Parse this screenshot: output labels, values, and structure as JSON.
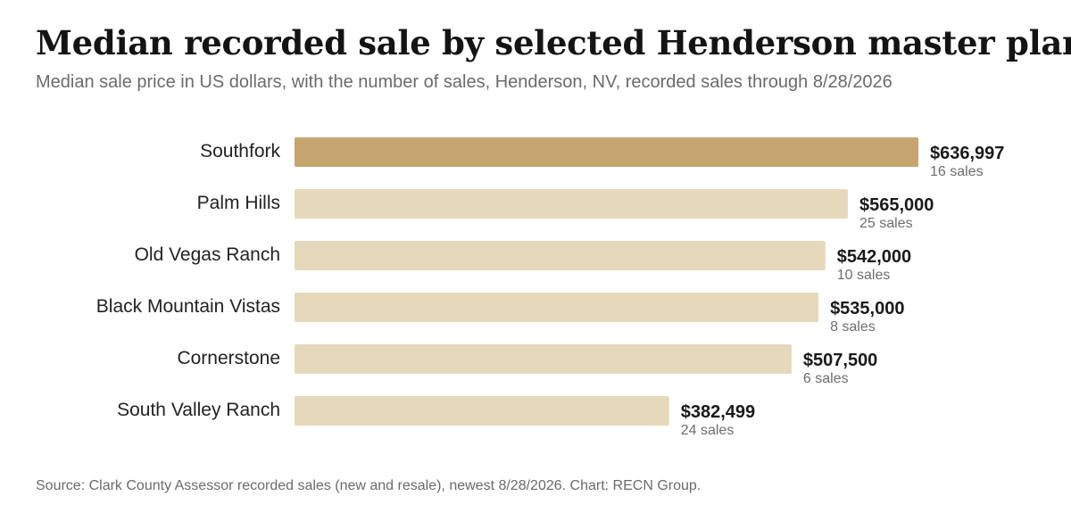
{
  "header": {
    "title": "Median recorded sale by selected Henderson master plans",
    "subtitle": "Median sale price in US dollars, with the number of sales, Henderson, NV, recorded sales through 8/28/2026"
  },
  "footer": {
    "source": "Source: Clark County Assessor recorded sales (new and resale), newest 8/28/2026. Chart: RECN Group."
  },
  "colors": {
    "highlight": "#c6a56f",
    "bar": "#e6d8bb"
  },
  "chart_data": {
    "type": "bar",
    "orientation": "horizontal",
    "categories": [
      "Southfork",
      "Palm Hills",
      "Old Vegas Ranch",
      "Black Mountain Vistas",
      "Cornerstone",
      "South Valley Ranch"
    ],
    "values": [
      636997,
      565000,
      542000,
      535000,
      507500,
      382499
    ],
    "value_labels": [
      "$636,997",
      "$565,000",
      "$542,000",
      "$535,000",
      "$507,500",
      "$382,499"
    ],
    "count_labels": [
      "16 sales",
      "25 sales",
      "10 sales",
      "8 sales",
      "6 sales",
      "24 sales"
    ],
    "highlight_index": 0,
    "xlim": [
      0,
      636997
    ],
    "grid": false,
    "legend": "none"
  }
}
